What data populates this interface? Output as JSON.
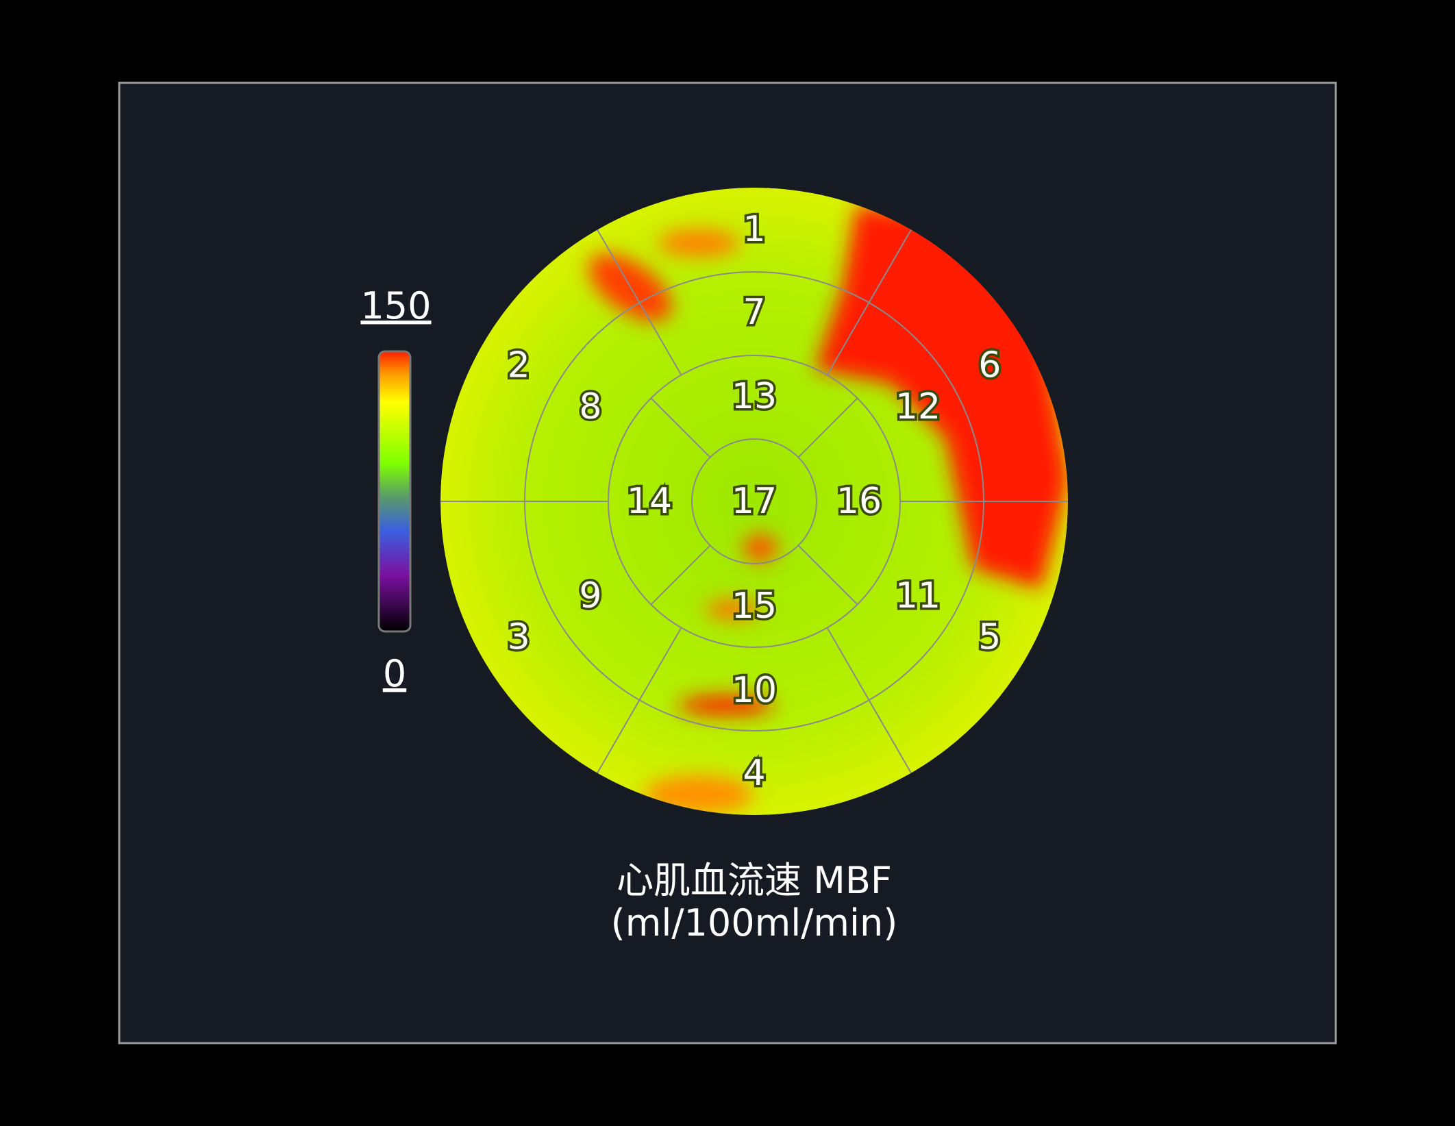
{
  "colorbar": {
    "max": 150,
    "min": 0
  },
  "segments": [
    1,
    2,
    3,
    4,
    5,
    6,
    7,
    8,
    9,
    10,
    11,
    12,
    13,
    14,
    15,
    16,
    17
  ],
  "caption": [
    "心肌血流速 MBF",
    "(ml/100ml/min)"
  ]
}
